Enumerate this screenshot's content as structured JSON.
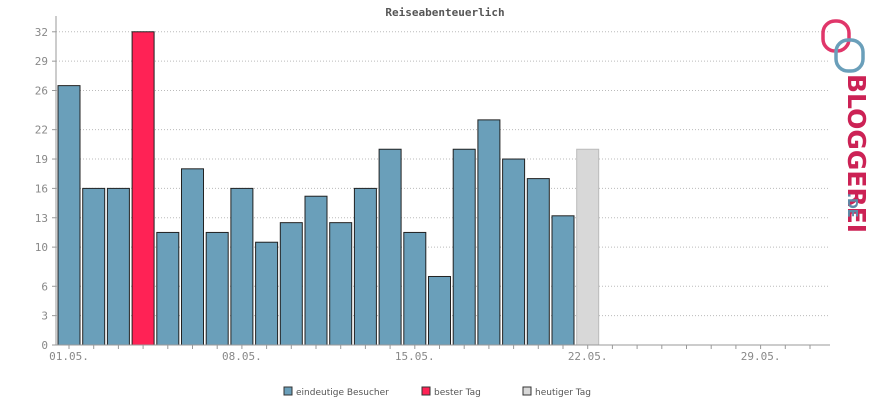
{
  "chart_data": {
    "type": "bar",
    "title": "Reiseabenteuerlich",
    "ylim": [
      0,
      33
    ],
    "yticks": [
      0,
      3,
      6,
      10,
      13,
      16,
      19,
      22,
      26,
      29,
      32
    ],
    "grid": true,
    "x_days": 31,
    "xtick_labels": [
      {
        "day": 1,
        "label": "01.05."
      },
      {
        "day": 8,
        "label": "08.05."
      },
      {
        "day": 15,
        "label": "15.05."
      },
      {
        "day": 22,
        "label": "22.05."
      },
      {
        "day": 29,
        "label": "29.05."
      }
    ],
    "values": [
      26.5,
      16,
      16,
      32,
      11.5,
      18,
      11.5,
      16,
      10.5,
      12.5,
      15.2,
      12.5,
      16,
      20,
      11.5,
      7,
      20,
      23,
      19,
      17,
      13.2,
      20
    ],
    "best_day_index": 3,
    "today_index": 21,
    "colors": {
      "normal": "#6a9fba",
      "best": "#ff2255",
      "today": "#d8d8d8",
      "bar_stroke": "#222222"
    },
    "legend": [
      {
        "label": "eindeutige Besucher",
        "color": "#6a9fba"
      },
      {
        "label": "bester Tag",
        "color": "#ff2255"
      },
      {
        "label": "heutiger Tag",
        "color": "#d8d8d8"
      }
    ],
    "legend_placement": "bottom-center"
  },
  "logo": {
    "word": "BLOGGEREI",
    "suffix": ".DE",
    "accent": "#cc2255",
    "secondary": "#5d8aa8"
  }
}
